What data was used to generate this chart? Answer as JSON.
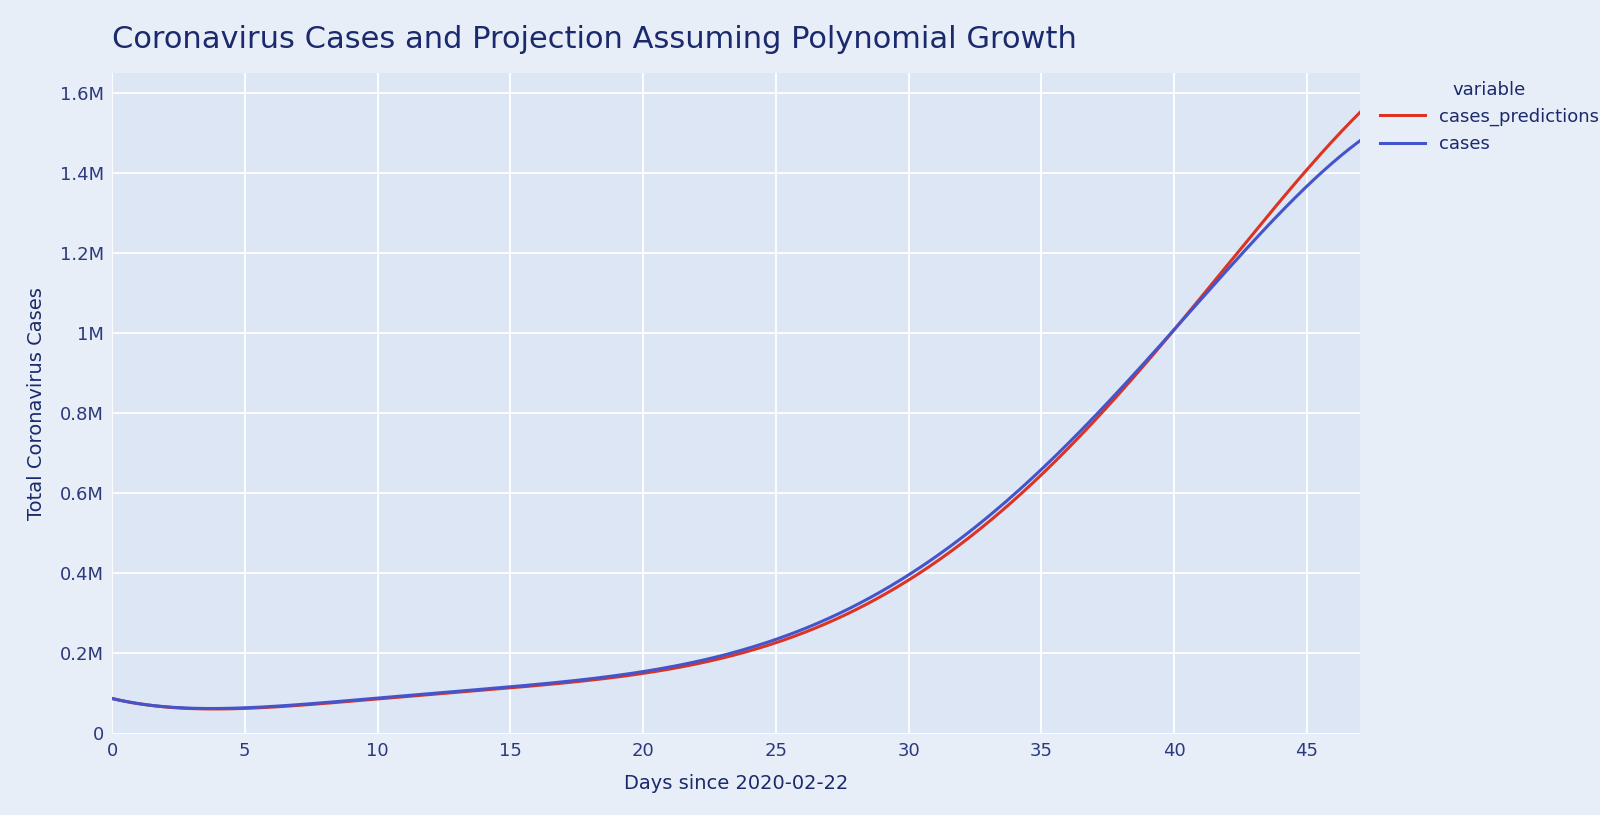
{
  "title": "Coronavirus Cases and Projection Assuming Polynomial Growth",
  "xlabel": "Days since 2020-02-22",
  "ylabel": "Total Coronavirus Cases",
  "xlim": [
    0,
    47
  ],
  "ylim": [
    0,
    1650000
  ],
  "xticks": [
    0,
    5,
    10,
    15,
    20,
    25,
    30,
    35,
    40,
    45
  ],
  "ytick_labels": [
    "0",
    "0.2M",
    "0.4M",
    "0.6M",
    "0.8M",
    "1M",
    "1.2M",
    "1.4M",
    "1.6M"
  ],
  "ytick_values": [
    0,
    200000,
    400000,
    600000,
    800000,
    1000000,
    1200000,
    1400000,
    1600000
  ],
  "cases_color": "#4455cc",
  "predictions_color": "#dd3322",
  "background_color": "#dce6f5",
  "outer_bg_color": "#e8eef8",
  "legend_title": "variable",
  "legend_labels": [
    "cases",
    "cases_predictions"
  ],
  "title_color": "#1a2a6c",
  "axis_label_color": "#1a2a6c",
  "tick_color": "#2a3a7c",
  "line_width": 2.2,
  "cases_x": [
    0,
    2,
    5,
    8,
    10,
    13,
    15,
    18,
    20,
    22,
    25,
    27,
    30,
    32,
    35,
    37,
    40,
    42,
    45,
    47
  ],
  "cases_y": [
    77000,
    76000,
    77000,
    80000,
    83000,
    90000,
    102000,
    135000,
    168000,
    198000,
    235000,
    295000,
    390000,
    490000,
    640000,
    790000,
    1010000,
    1170000,
    1380000,
    1470000
  ],
  "pred_x": [
    0,
    2,
    5,
    8,
    10,
    13,
    15,
    18,
    20,
    22,
    25,
    27,
    30,
    32,
    35,
    37,
    40,
    42,
    45,
    47
  ],
  "pred_y": [
    77000,
    75500,
    76000,
    78500,
    81000,
    88000,
    99000,
    130000,
    162000,
    192000,
    228000,
    288000,
    378000,
    478000,
    620000,
    780000,
    1005000,
    1190000,
    1420000,
    1540000
  ]
}
